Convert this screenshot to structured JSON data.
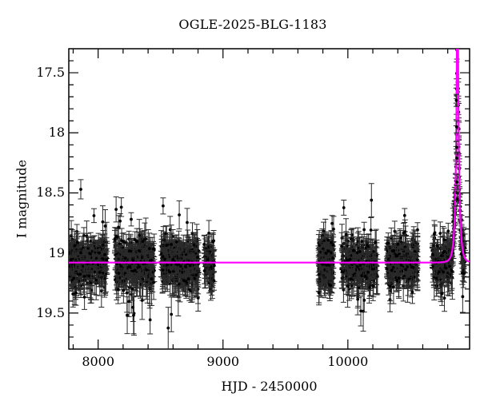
{
  "chart_data": {
    "type": "scatter",
    "title": "OGLE-2025-BLG-1183",
    "xlabel": "HJD - 2450000",
    "ylabel": "I magnitude",
    "x_range": [
      7765,
      10975
    ],
    "y_range_mag": [
      17.3,
      19.8
    ],
    "y_axis_inverted": true,
    "grid": false,
    "legend": "none",
    "x_ticks": {
      "minor_step": 200,
      "major": [
        {
          "value": 8000,
          "label": "8000"
        },
        {
          "value": 9000,
          "label": "9000"
        },
        {
          "value": 10000,
          "label": "10000"
        }
      ]
    },
    "y_ticks": {
      "minor_step": 0.1,
      "major": [
        {
          "value": 17.5,
          "label": "17.5"
        },
        {
          "value": 18,
          "label": "18"
        },
        {
          "value": 18.5,
          "label": "18.5"
        },
        {
          "value": 19,
          "label": "19"
        },
        {
          "value": 19.5,
          "label": "19.5"
        }
      ]
    },
    "baseline_mag": 19.08,
    "model": {
      "type": "paczynski",
      "t0": 10878,
      "tE": 25,
      "u0": 0.002,
      "peak_clipped_at_top": true
    },
    "colors": {
      "background": "#ffffff",
      "frame": "#000000",
      "points": "#000000",
      "error_bars": "#2a2a2a",
      "model_line": "#ff00ff"
    },
    "observing_seasons": [
      {
        "t_start": 7765,
        "t_end": 8073,
        "n": 330,
        "follow_model": false
      },
      {
        "t_start": 8130,
        "t_end": 8450,
        "n": 380,
        "follow_model": false
      },
      {
        "t_start": 8502,
        "t_end": 8805,
        "n": 380,
        "follow_model": false
      },
      {
        "t_start": 8848,
        "t_end": 8931,
        "n": 75,
        "follow_model": false
      },
      {
        "t_start": 9764,
        "t_end": 9886,
        "n": 260,
        "follow_model": false
      },
      {
        "t_start": 9950,
        "t_end": 10240,
        "n": 270,
        "follow_model": false
      },
      {
        "t_start": 10309,
        "t_end": 10560,
        "n": 240,
        "follow_model": false
      },
      {
        "t_start": 10674,
        "t_end": 10850,
        "n": 160,
        "follow_model": true
      },
      {
        "t_start": 10850,
        "t_end": 10877,
        "n": 30,
        "follow_model": true
      },
      {
        "t_start": 10879,
        "t_end": 10940,
        "n": 70,
        "follow_model": true
      }
    ],
    "scatter_sigma_mag": 0.085,
    "outlier_sigma_mag": 0.17,
    "notable_points": [
      {
        "t": 7861,
        "mag": 18.47,
        "err": 0.08,
        "note": "isolated bright outlier"
      },
      {
        "t": 10869,
        "mag": 17.73,
        "err": 0.05
      },
      {
        "t": 10871,
        "mag": 17.95,
        "err": 0.05
      },
      {
        "t": 10872,
        "mag": 18.12,
        "err": 0.05
      },
      {
        "t": 10873,
        "mag": 18.21,
        "err": 0.05
      },
      {
        "t": 10874,
        "mag": 18.41,
        "err": 0.06
      },
      {
        "t": 10875,
        "mag": 18.5,
        "err": 0.06
      },
      {
        "t": 10876,
        "mag": 18.55,
        "err": 0.06
      }
    ],
    "render_seed": 11
  }
}
